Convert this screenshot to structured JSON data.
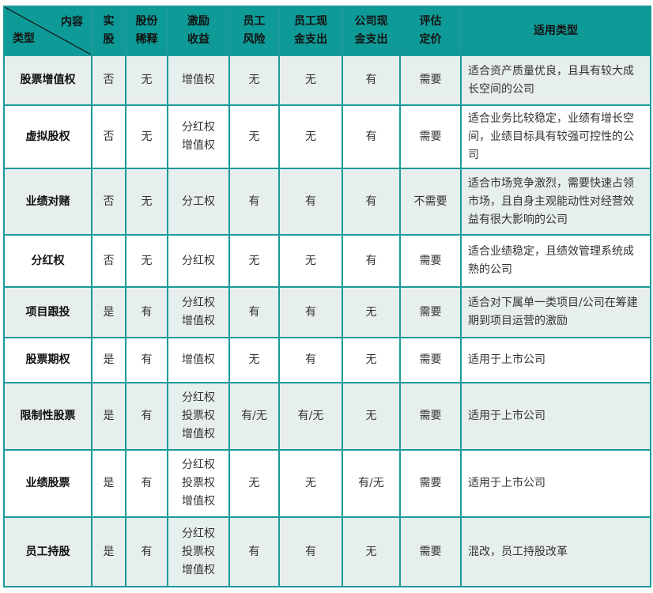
{
  "header": {
    "corner_top": "内容",
    "corner_bottom": "类型",
    "columns": [
      "实\n股",
      "股份\n稀释",
      "激励\n收益",
      "员工\n风险",
      "员工现\n金支出",
      "公司现\n金支出",
      "评估\n定价",
      "适用类型"
    ]
  },
  "rows": [
    {
      "type": "股票增值权",
      "cells": [
        "否",
        "无",
        "增值权",
        "无",
        "无",
        "有",
        "需要"
      ],
      "desc": "适合资产质量优良，且具有较大成长空间的公司"
    },
    {
      "type": "虚拟股权",
      "cells": [
        "否",
        "无",
        "分红权\n增值权",
        "无",
        "无",
        "有",
        "需要"
      ],
      "desc": "适合业务比较稳定，业绩有增长空间，业绩目标具有较强可控性的公司"
    },
    {
      "type": "业绩对赌",
      "cells": [
        "否",
        "无",
        "分工权",
        "有",
        "有",
        "有",
        "不需要"
      ],
      "desc": "适合市场竞争激烈，需要快速占领市场，且自身主观能动性对经营效益有很大影响的公司"
    },
    {
      "type": "分红权",
      "cells": [
        "否",
        "无",
        "分红权",
        "无",
        "无",
        "有",
        "需要"
      ],
      "desc": "适合业绩稳定，且绩效管理系统成熟的公司"
    },
    {
      "type": "项目跟投",
      "cells": [
        "是",
        "有",
        "分红权\n增值权",
        "有",
        "有",
        "无",
        "需要"
      ],
      "desc": "适合对下属单一类项目/公司在筹建期到项目运营的激励"
    },
    {
      "type": "股票期权",
      "cells": [
        "是",
        "有",
        "增值权",
        "无",
        "有",
        "无",
        "需要"
      ],
      "desc": "适用于上市公司"
    },
    {
      "type": "限制性股票",
      "cells": [
        "是",
        "有",
        "分红权\n投票权\n增值权",
        "有/无",
        "有/无",
        "无",
        "需要"
      ],
      "desc": "适用于上市公司"
    },
    {
      "type": "业绩股票",
      "cells": [
        "是",
        "有",
        "分红权\n投票权\n增值权",
        "无",
        "无",
        "有/无",
        "需要"
      ],
      "desc": "适用于上市公司"
    },
    {
      "type": "员工持股",
      "cells": [
        "是",
        "有",
        "分红权\n投票权\n增值权",
        "有",
        "有",
        "无",
        "需要"
      ],
      "desc": "混改，员工持股改革"
    }
  ]
}
